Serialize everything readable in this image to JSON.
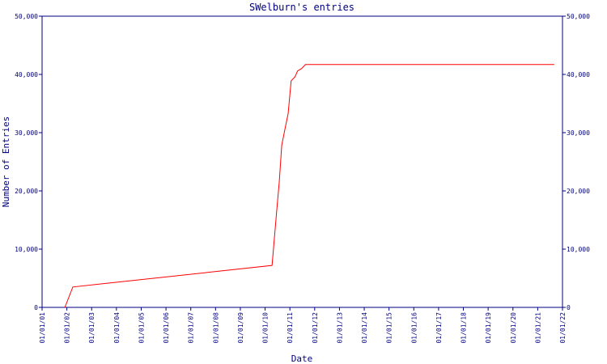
{
  "chart_data": {
    "type": "line",
    "title": "SWelburn's entries",
    "x_label": "Date",
    "y_label": "Number of Entries",
    "axis_color": "#000080",
    "series": [
      {
        "name": "entries",
        "color": "#ff0000",
        "x": [
          2001.92,
          2002.24,
          2010.28,
          2010.47,
          2010.57,
          2010.67,
          2010.8,
          2010.93,
          2011.05,
          2011.21,
          2011.31,
          2011.47,
          2011.63,
          2021.67
        ],
        "values": [
          0,
          3500,
          7200,
          16700,
          21500,
          27800,
          30600,
          33300,
          38900,
          39600,
          40600,
          41000,
          41700,
          41700
        ]
      }
    ],
    "xlim": [
      2001,
      2022
    ],
    "xticks": [
      {
        "value": 2001,
        "label": "01/01/01"
      },
      {
        "value": 2002,
        "label": "01/01/02"
      },
      {
        "value": 2003,
        "label": "01/01/03"
      },
      {
        "value": 2004,
        "label": "01/01/04"
      },
      {
        "value": 2005,
        "label": "01/01/05"
      },
      {
        "value": 2006,
        "label": "01/01/06"
      },
      {
        "value": 2007,
        "label": "01/01/07"
      },
      {
        "value": 2008,
        "label": "01/01/08"
      },
      {
        "value": 2009,
        "label": "01/01/09"
      },
      {
        "value": 2010,
        "label": "01/01/10"
      },
      {
        "value": 2011,
        "label": "01/01/11"
      },
      {
        "value": 2012,
        "label": "01/01/12"
      },
      {
        "value": 2013,
        "label": "01/01/13"
      },
      {
        "value": 2014,
        "label": "01/01/14"
      },
      {
        "value": 2015,
        "label": "01/01/15"
      },
      {
        "value": 2016,
        "label": "01/01/16"
      },
      {
        "value": 2017,
        "label": "01/01/17"
      },
      {
        "value": 2018,
        "label": "01/01/18"
      },
      {
        "value": 2019,
        "label": "01/01/19"
      },
      {
        "value": 2020,
        "label": "01/01/20"
      },
      {
        "value": 2021,
        "label": "01/01/21"
      },
      {
        "value": 2022,
        "label": "01/01/22"
      }
    ],
    "ylim": [
      0,
      50000
    ],
    "yticks": [
      0,
      {
        "value": 10000,
        "label": "10,000"
      },
      {
        "value": 20000,
        "label": "20,000"
      },
      {
        "value": 30000,
        "label": "30,000"
      },
      {
        "value": 40000,
        "label": "40,000"
      },
      {
        "value": 50000,
        "label": "50,000"
      }
    ]
  }
}
